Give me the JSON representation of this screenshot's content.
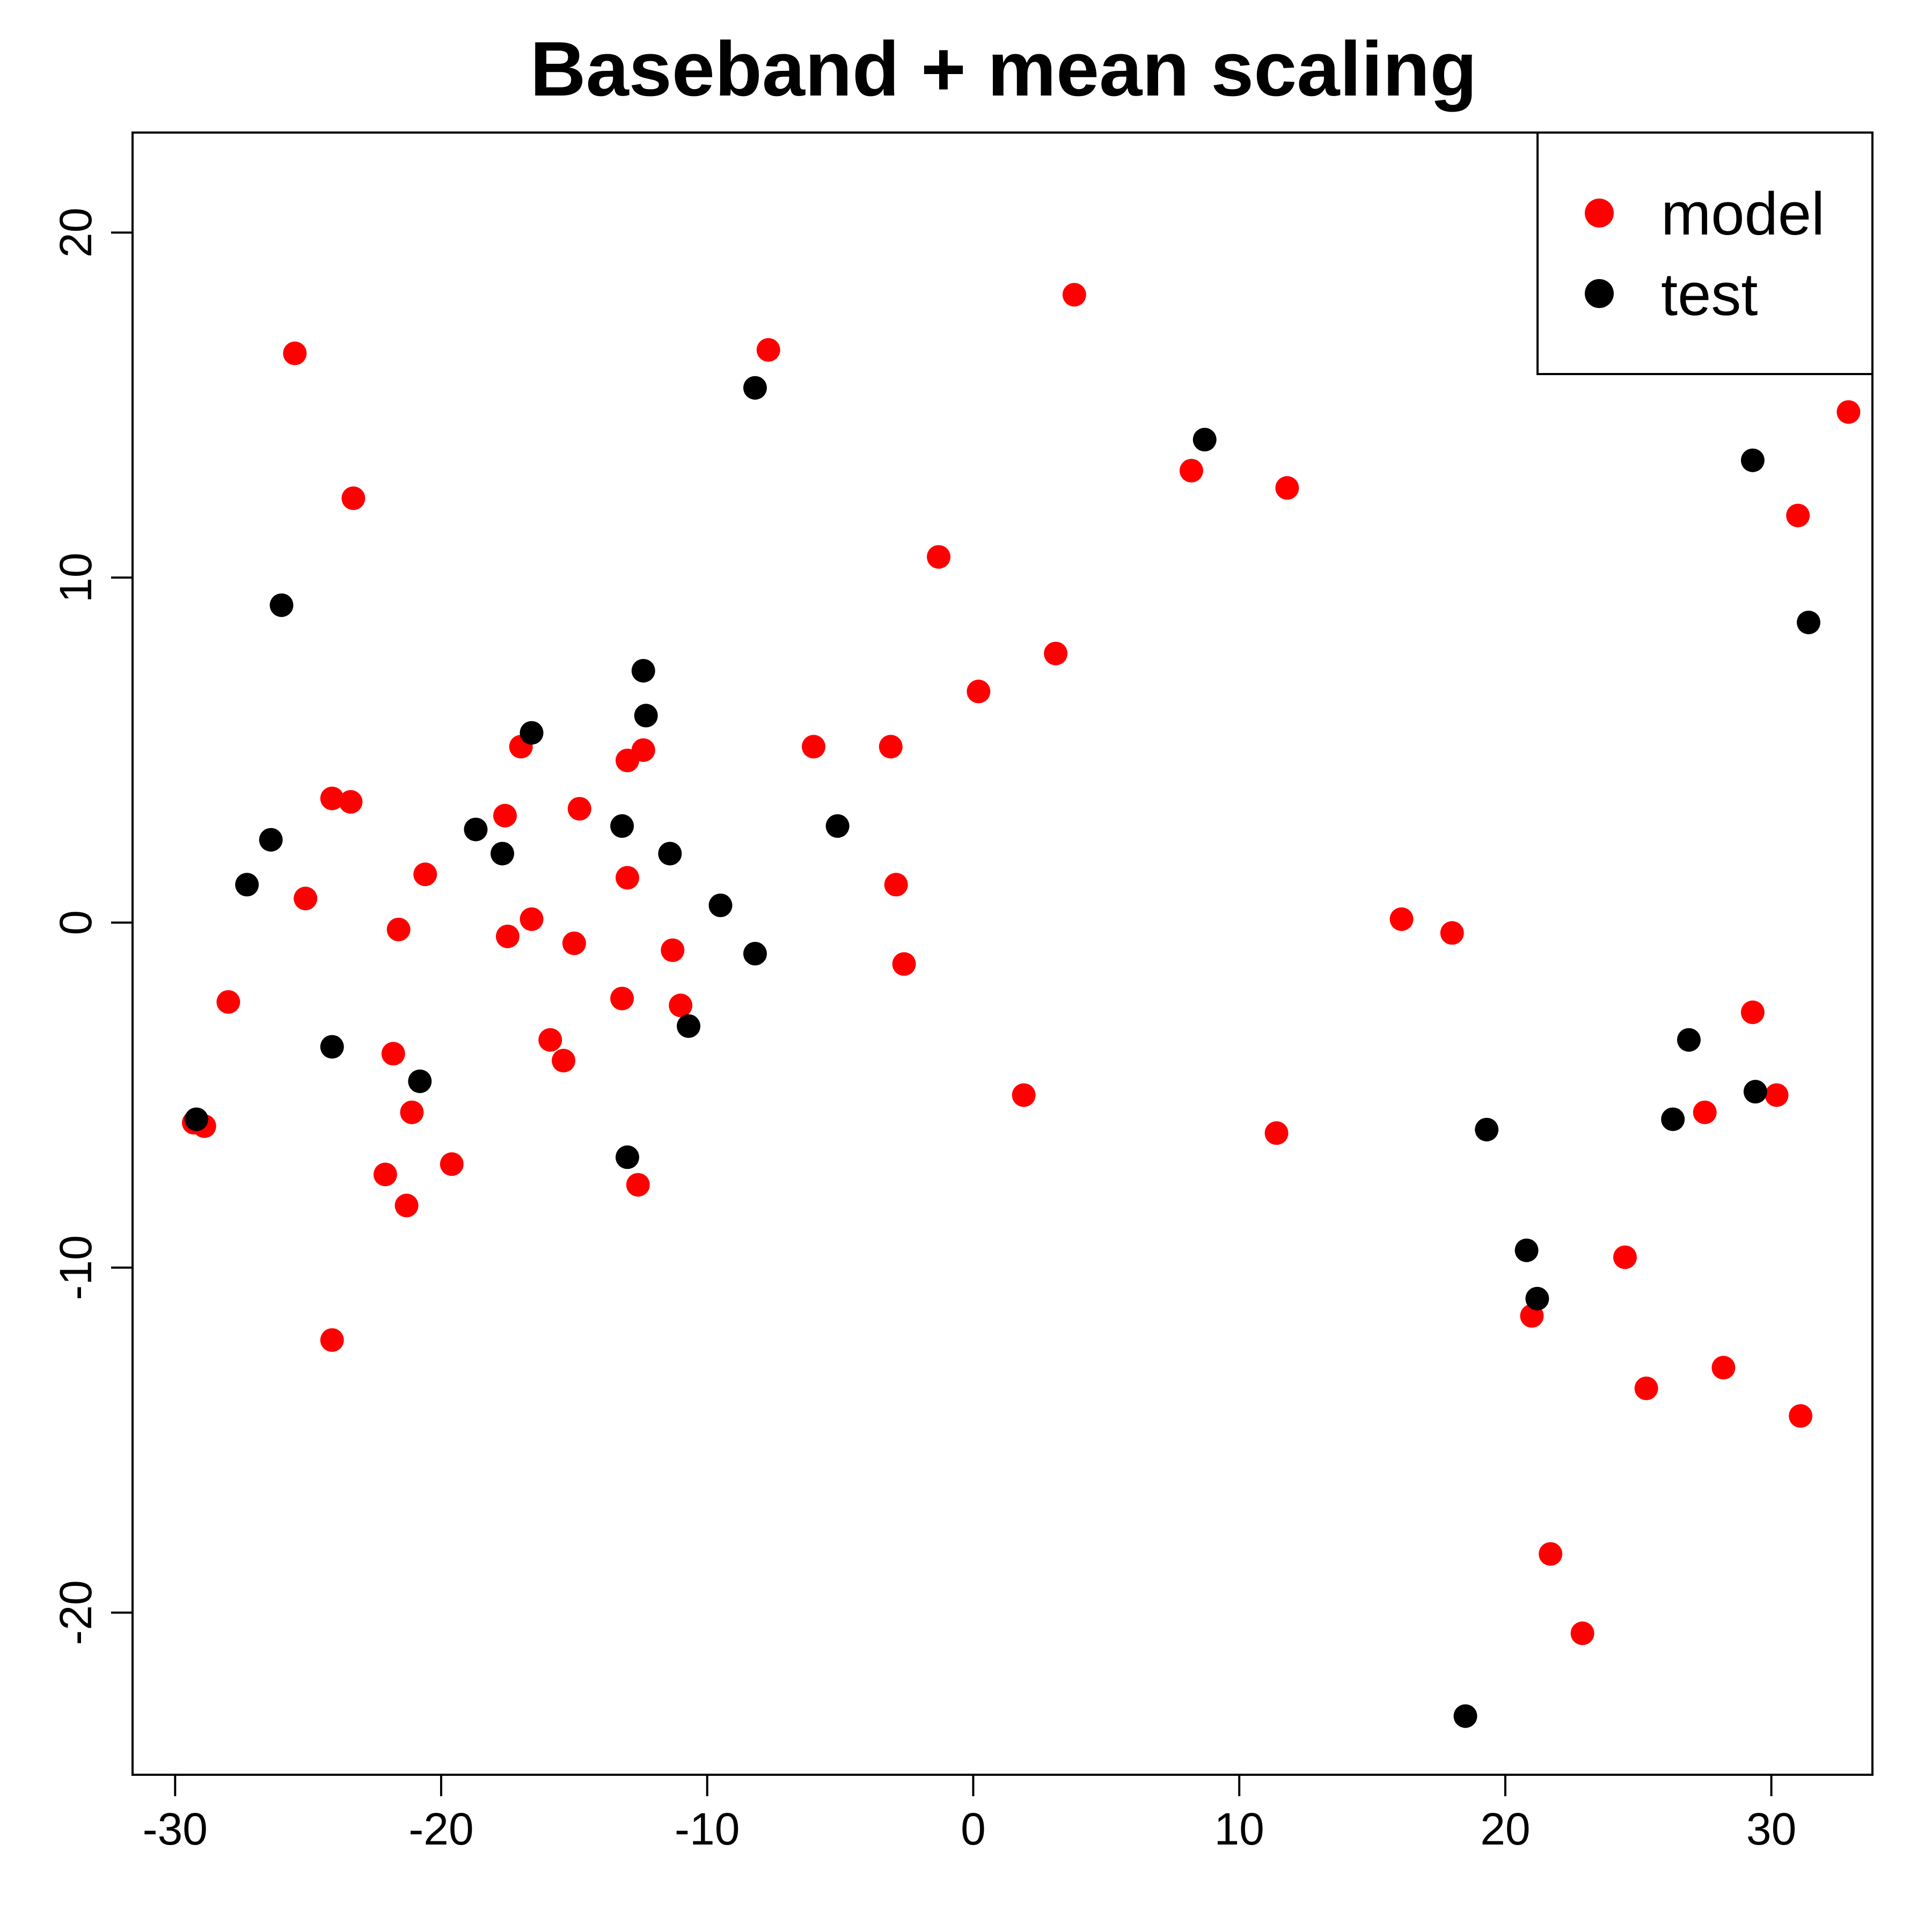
{
  "chart_data": {
    "type": "scatter",
    "title": "Baseband + mean scaling",
    "xlabel": "",
    "ylabel": "",
    "xlim": [
      -31.6,
      33.8
    ],
    "ylim": [
      -24.7,
      22.9
    ],
    "x_ticks": [
      -30,
      -20,
      -10,
      0,
      10,
      20,
      30
    ],
    "x_tick_labels": [
      "-30",
      "-20",
      "-10",
      "0",
      "10",
      "20",
      "30"
    ],
    "y_ticks": [
      -20,
      -10,
      0,
      10,
      20
    ],
    "y_tick_labels": [
      "-20",
      "-10",
      "0",
      "10",
      "20"
    ],
    "grid": false,
    "legend": {
      "placement": "top-right",
      "entries": [
        {
          "label": "model",
          "color": "#ff0000"
        },
        {
          "label": "test",
          "color": "#000000"
        }
      ]
    },
    "series": [
      {
        "name": "model",
        "color": "#ff0000",
        "points": [
          [
            -25.5,
            16.5
          ],
          [
            -23.3,
            12.3
          ],
          [
            -24.1,
            3.6
          ],
          [
            -23.4,
            3.5
          ],
          [
            -25.1,
            0.7
          ],
          [
            -28.0,
            -2.3
          ],
          [
            -29.3,
            -5.8
          ],
          [
            -28.9,
            -5.9
          ],
          [
            -24.1,
            -12.1
          ],
          [
            -21.6,
            -0.2
          ],
          [
            -20.6,
            1.4
          ],
          [
            -21.8,
            -3.8
          ],
          [
            -21.1,
            -5.5
          ],
          [
            -22.1,
            -7.3
          ],
          [
            -21.3,
            -8.2
          ],
          [
            -19.6,
            -7.0
          ],
          [
            -17.0,
            5.1
          ],
          [
            -17.6,
            3.1
          ],
          [
            -17.5,
            -0.4
          ],
          [
            -16.6,
            0.1
          ],
          [
            -14.8,
            3.3
          ],
          [
            -15.0,
            -0.6
          ],
          [
            -15.9,
            -3.4
          ],
          [
            -15.4,
            -4.0
          ],
          [
            -13.0,
            4.7
          ],
          [
            -12.4,
            5.0
          ],
          [
            -13.0,
            1.3
          ],
          [
            -13.2,
            -2.2
          ],
          [
            -11.3,
            -0.8
          ],
          [
            -11.0,
            -2.4
          ],
          [
            -12.6,
            -7.6
          ],
          [
            -7.7,
            16.6
          ],
          [
            -6.0,
            5.1
          ],
          [
            -3.1,
            5.1
          ],
          [
            -2.9,
            1.1
          ],
          [
            -2.6,
            -1.2
          ],
          [
            -1.3,
            10.6
          ],
          [
            0.2,
            6.7
          ],
          [
            3.1,
            7.8
          ],
          [
            3.8,
            18.2
          ],
          [
            1.9,
            -5.0
          ],
          [
            8.2,
            13.1
          ],
          [
            11.8,
            12.6
          ],
          [
            11.4,
            -6.1
          ],
          [
            16.1,
            0.1
          ],
          [
            18.0,
            -0.3
          ],
          [
            21.0,
            -11.4
          ],
          [
            21.7,
            -18.3
          ],
          [
            22.9,
            -20.6
          ],
          [
            24.5,
            -9.7
          ],
          [
            25.3,
            -13.5
          ],
          [
            27.5,
            -5.5
          ],
          [
            28.2,
            -12.9
          ],
          [
            29.3,
            -2.6
          ],
          [
            30.2,
            -5.0
          ],
          [
            31.0,
            11.8
          ],
          [
            31.1,
            -14.3
          ],
          [
            32.9,
            14.8
          ]
        ]
      },
      {
        "name": "test",
        "color": "#000000",
        "points": [
          [
            -26.0,
            9.2
          ],
          [
            -26.4,
            2.4
          ],
          [
            -27.3,
            1.1
          ],
          [
            -24.1,
            -3.6
          ],
          [
            -29.2,
            -5.7
          ],
          [
            -20.8,
            -4.6
          ],
          [
            -18.7,
            2.7
          ],
          [
            -17.7,
            2.0
          ],
          [
            -16.6,
            5.5
          ],
          [
            -12.4,
            7.3
          ],
          [
            -12.3,
            6.0
          ],
          [
            -13.2,
            2.8
          ],
          [
            -11.4,
            2.0
          ],
          [
            -13.0,
            -6.8
          ],
          [
            -10.7,
            -3.0
          ],
          [
            -9.5,
            0.5
          ],
          [
            -8.2,
            -0.9
          ],
          [
            -8.2,
            15.5
          ],
          [
            -5.1,
            2.8
          ],
          [
            8.7,
            14.0
          ],
          [
            19.3,
            -6.0
          ],
          [
            20.8,
            -9.5
          ],
          [
            21.2,
            -10.9
          ],
          [
            18.5,
            -23.0
          ],
          [
            26.3,
            -5.7
          ],
          [
            26.9,
            -3.4
          ],
          [
            29.3,
            13.4
          ],
          [
            29.4,
            -4.9
          ],
          [
            31.4,
            8.7
          ]
        ]
      }
    ]
  }
}
